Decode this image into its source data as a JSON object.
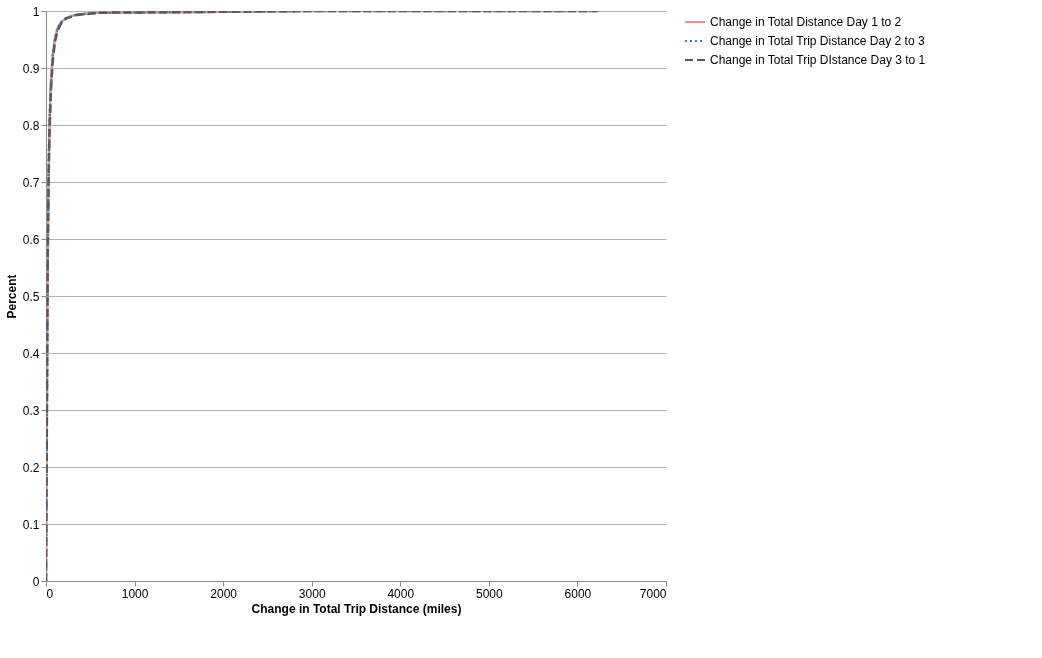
{
  "chart_data": {
    "type": "line",
    "xlabel": "Change in Total Trip Distance (miles)",
    "ylabel": "Percent",
    "xlim": [
      0,
      7000
    ],
    "xticks": [
      0,
      1000,
      2000,
      3000,
      4000,
      5000,
      6000,
      7000
    ],
    "ylim": [
      0,
      1
    ],
    "yticks": [
      0,
      0.1,
      0.2,
      0.3,
      0.4,
      0.5,
      0.6,
      0.7,
      0.8,
      0.9,
      1
    ],
    "grid": "y",
    "legend": "right",
    "series": [
      {
        "name": "Change in Total Distance Day 1 to 2",
        "color": "#e8908c",
        "line_style": "solid",
        "x": [
          0,
          5,
          10,
          15,
          20,
          30,
          40,
          55,
          75,
          100,
          130,
          170,
          230,
          350,
          600,
          1500,
          3000,
          6230
        ],
        "values": [
          0,
          0.15,
          0.3,
          0.45,
          0.58,
          0.72,
          0.8,
          0.87,
          0.92,
          0.95,
          0.97,
          0.98,
          0.988,
          0.994,
          0.997,
          0.998,
          1,
          1
        ]
      },
      {
        "name": "Change in Total Trip Distance Day 2 to 3",
        "color": "#3c78c0",
        "line_style": "dotted",
        "x": [
          0,
          5,
          10,
          15,
          20,
          30,
          40,
          55,
          75,
          100,
          130,
          170,
          230,
          350,
          600,
          1500,
          3000,
          6230
        ],
        "values": [
          0,
          0.16,
          0.31,
          0.46,
          0.59,
          0.73,
          0.81,
          0.87,
          0.92,
          0.95,
          0.97,
          0.98,
          0.988,
          0.994,
          0.997,
          0.998,
          1,
          1
        ]
      },
      {
        "name": "Change in Total Trip DIstance Day 3 to 1",
        "color": "#595959",
        "line_style": "dashed",
        "x": [
          0,
          5,
          10,
          15,
          20,
          30,
          40,
          55,
          75,
          100,
          130,
          170,
          230,
          350,
          600,
          1500,
          3000,
          6230
        ],
        "values": [
          0,
          0.14,
          0.29,
          0.44,
          0.57,
          0.71,
          0.79,
          0.86,
          0.91,
          0.945,
          0.965,
          0.978,
          0.987,
          0.993,
          0.997,
          0.998,
          1,
          1
        ]
      }
    ]
  }
}
